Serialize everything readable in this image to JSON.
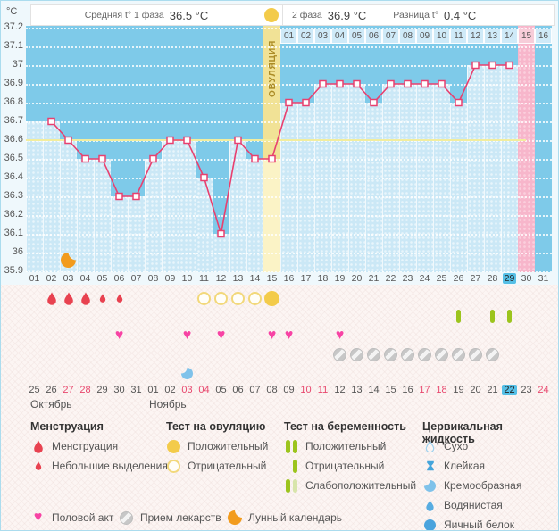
{
  "header": {
    "unit": "°C",
    "avg_phase1_label": "Средняя t° 1 фаза",
    "avg_phase1_value": "36.5 °C",
    "phase2_label": "2 фаза",
    "phase2_value": "36.9 °C",
    "diff_label": "Разница t°",
    "diff_value": "0.4 °C"
  },
  "ovulation_column_label": "ОВУЛЯЦИЯ",
  "chart_data": {
    "type": "line",
    "title": "Basal body temperature cycle chart",
    "ylabel": "°C",
    "ylim": [
      35.9,
      37.2
    ],
    "yticks": [
      "37.2",
      "37.1",
      "37",
      "36.9",
      "36.8",
      "36.7",
      "36.6",
      "36.5",
      "36.4",
      "36.3",
      "36.2",
      "36.1",
      "36",
      "35.9"
    ],
    "grid": "dotted-white",
    "cycle_days": [
      "01",
      "02",
      "03",
      "04",
      "05",
      "06",
      "07",
      "08",
      "09",
      "10",
      "11",
      "12",
      "13",
      "14",
      "15",
      "16",
      "17",
      "18",
      "19",
      "20",
      "21",
      "22",
      "23",
      "24",
      "25",
      "26",
      "27",
      "28",
      "29",
      "30",
      "31"
    ],
    "temperatures": [
      null,
      36.7,
      36.6,
      36.5,
      36.5,
      36.3,
      36.3,
      36.5,
      36.6,
      36.6,
      36.4,
      36.1,
      36.6,
      36.5,
      36.5,
      36.8,
      36.8,
      36.9,
      36.9,
      36.9,
      36.8,
      36.9,
      36.9,
      36.9,
      36.9,
      36.8,
      37.0,
      37.0,
      37.0,
      null,
      null
    ],
    "coverline": 36.6,
    "ovulation_day": 15,
    "expected_period_day": 30,
    "current_day": 29,
    "dpo_days": [
      "01",
      "02",
      "03",
      "04",
      "05",
      "06",
      "07",
      "08",
      "09",
      "10",
      "11",
      "12",
      "13",
      "14",
      "15",
      "16"
    ],
    "dpo_highlight": "15"
  },
  "events": {
    "menstruation": [
      {
        "day": 2,
        "size": "large"
      },
      {
        "day": 3,
        "size": "large"
      },
      {
        "day": 4,
        "size": "large"
      },
      {
        "day": 5,
        "size": "small"
      },
      {
        "day": 6,
        "size": "small"
      }
    ],
    "ovulation_tests": [
      {
        "day": 11,
        "result": "negative"
      },
      {
        "day": 12,
        "result": "negative"
      },
      {
        "day": 13,
        "result": "negative"
      },
      {
        "day": 14,
        "result": "negative"
      },
      {
        "day": 15,
        "result": "positive"
      }
    ],
    "pregnancy_tests": [
      {
        "day": 26,
        "result": "negative"
      },
      {
        "day": 28,
        "result": "negative"
      },
      {
        "day": 29,
        "result": "negative"
      }
    ],
    "intercourse_days": [
      6,
      10,
      12,
      15,
      16,
      19
    ],
    "medication_days": [
      19,
      20,
      21,
      22,
      23,
      24,
      25,
      26,
      27,
      28
    ],
    "cervical_fluid": [
      {
        "day": 10,
        "type": "Кремообразная"
      }
    ],
    "lunar_days": [
      3
    ]
  },
  "calendar": {
    "dates": [
      {
        "t": "25"
      },
      {
        "t": "26"
      },
      {
        "t": "27",
        "w": 1
      },
      {
        "t": "28",
        "w": 1
      },
      {
        "t": "29"
      },
      {
        "t": "30"
      },
      {
        "t": "31"
      },
      {
        "t": "01"
      },
      {
        "t": "02"
      },
      {
        "t": "03",
        "w": 1
      },
      {
        "t": "04",
        "w": 1
      },
      {
        "t": "05"
      },
      {
        "t": "06"
      },
      {
        "t": "07"
      },
      {
        "t": "08"
      },
      {
        "t": "09"
      },
      {
        "t": "10",
        "w": 1
      },
      {
        "t": "11",
        "w": 1
      },
      {
        "t": "12"
      },
      {
        "t": "13"
      },
      {
        "t": "14"
      },
      {
        "t": "15"
      },
      {
        "t": "16"
      },
      {
        "t": "17",
        "w": 1
      },
      {
        "t": "18",
        "w": 1
      },
      {
        "t": "19"
      },
      {
        "t": "20"
      },
      {
        "t": "21"
      },
      {
        "t": "22",
        "today": 1
      },
      {
        "t": "23"
      },
      {
        "t": "24",
        "w": 1
      }
    ],
    "months": [
      {
        "label": "Октябрь",
        "start_day": 1
      },
      {
        "label": "Ноябрь",
        "start_day": 8
      }
    ]
  },
  "legend": {
    "sections": [
      {
        "title": "Менструация",
        "items": [
          {
            "icon": "drop-large",
            "label": "Менструация"
          },
          {
            "icon": "drop-small",
            "label": "Небольшие выделения"
          }
        ]
      },
      {
        "title": "Тест на овуляцию",
        "items": [
          {
            "icon": "circle-filled",
            "label": "Положительный"
          },
          {
            "icon": "circle-outline",
            "label": "Отрицательный"
          }
        ]
      },
      {
        "title": "Тест на беременность",
        "items": [
          {
            "icon": "bars-two",
            "label": "Положительный"
          },
          {
            "icon": "bar-one",
            "label": "Отрицательный"
          },
          {
            "icon": "bars-weak",
            "label": "Слабоположительный"
          }
        ]
      },
      {
        "title": "Цервикальная жидкость",
        "items": [
          {
            "icon": "fluid-dry",
            "label": "Сухо"
          },
          {
            "icon": "fluid-sticky",
            "label": "Клейкая"
          },
          {
            "icon": "fluid-creamy",
            "label": "Кремообразная"
          },
          {
            "icon": "fluid-watery",
            "label": "Водянистая"
          },
          {
            "icon": "fluid-eggwhite",
            "label": "Яичный белок"
          }
        ]
      }
    ],
    "footer": [
      {
        "icon": "heart",
        "label": "Половой акт"
      },
      {
        "icon": "pill",
        "label": "Прием лекарств"
      },
      {
        "icon": "moon",
        "label": "Лунный календарь"
      }
    ]
  },
  "colors": {
    "chart_bg": "#7ecae9",
    "fill": "#cbe8f6",
    "expected_period_pink": "#f7b6cb",
    "ovulation_col": "#f1e296",
    "ovulation_col_fill": "#fbf3c6",
    "coverline": "#f2ed9e",
    "temp_line": "#e8406f",
    "dpo_cell": "#cfeaf8",
    "dpo_cell_highlight": "#f7cdd9",
    "today_badge": "#55bfe6",
    "weekend_date": "#e8486e",
    "menstruation": "#e84250",
    "ov_test_positive": "#f3cb4a",
    "ov_test_negative_border": "#f2d87a",
    "pregnancy_bar": "#9cc41d",
    "pregnancy_bar_pale": "#d8e5ab",
    "heart": "#f743a4",
    "pill": "#c7c7c7",
    "moon": "#f29b1d",
    "fluid": "#57ace1",
    "fluid_light": "#7fc2ea",
    "fluid_outline": "#9fd2ef"
  }
}
